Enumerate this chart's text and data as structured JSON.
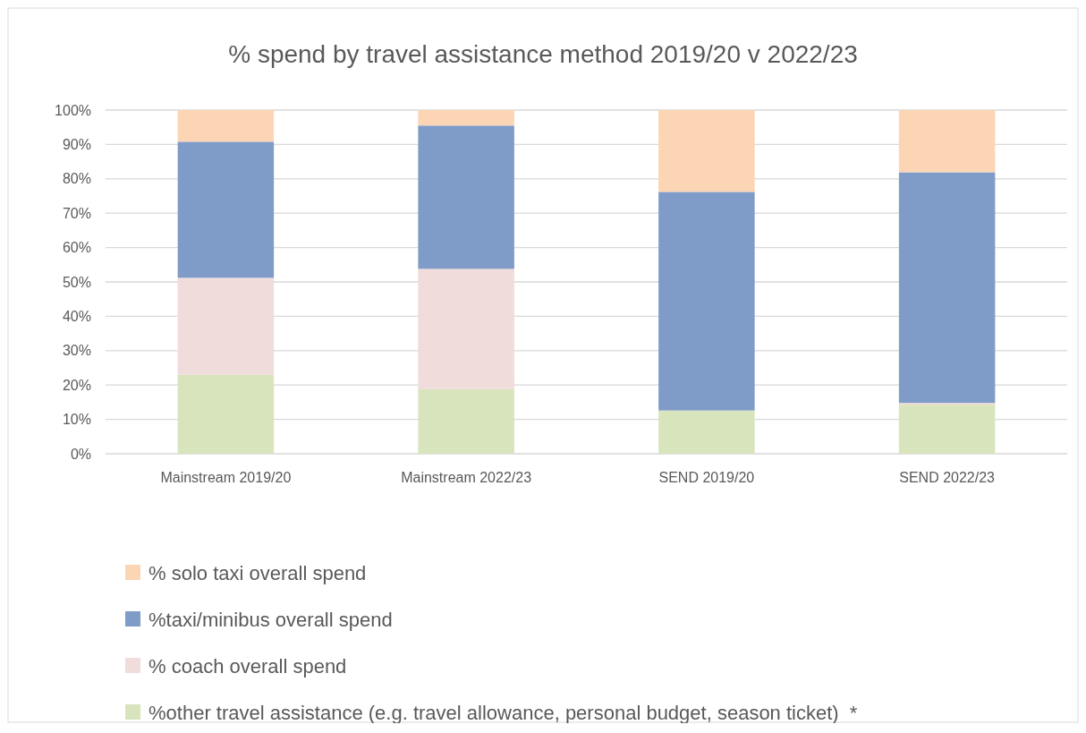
{
  "chart_data": {
    "type": "bar",
    "stacked": true,
    "title": "% spend by travel assistance method 2019/20 v 2022/23",
    "categories": [
      "Mainstream 2019/20",
      "Mainstream 2022/23",
      "SEND 2019/20",
      "SEND 2022/23"
    ],
    "series": [
      {
        "name": "%other travel assistance (e.g. travel allowance, personal budget, season ticket)  *",
        "color": "#d8e4bc",
        "values": [
          23,
          18.8,
          12.6,
          14.3
        ]
      },
      {
        "name": "% coach overall spend",
        "color": "#f0dcdb",
        "values": [
          28.2,
          35,
          0,
          0.5
        ]
      },
      {
        "name": "%taxi/minibus overall spend",
        "color": "#7f9cc8",
        "values": [
          39.6,
          41.7,
          63.6,
          67.1
        ]
      },
      {
        "name": "% solo taxi overall spend",
        "color": "#fcd5b4",
        "values": [
          9.2,
          4.5,
          23.8,
          18.1
        ]
      }
    ],
    "ylim": [
      0,
      100
    ],
    "yticks": [
      {
        "value": 0,
        "label": "0%"
      },
      {
        "value": 10,
        "label": "10%"
      },
      {
        "value": 20,
        "label": "20%"
      },
      {
        "value": 30,
        "label": "30%"
      },
      {
        "value": 40,
        "label": "40%"
      },
      {
        "value": 50,
        "label": "50%"
      },
      {
        "value": 60,
        "label": "60%"
      },
      {
        "value": 70,
        "label": "70%"
      },
      {
        "value": 80,
        "label": "80%"
      },
      {
        "value": 90,
        "label": "90%"
      },
      {
        "value": 100,
        "label": "100%"
      }
    ],
    "grid": "y",
    "legend": "bottom"
  }
}
